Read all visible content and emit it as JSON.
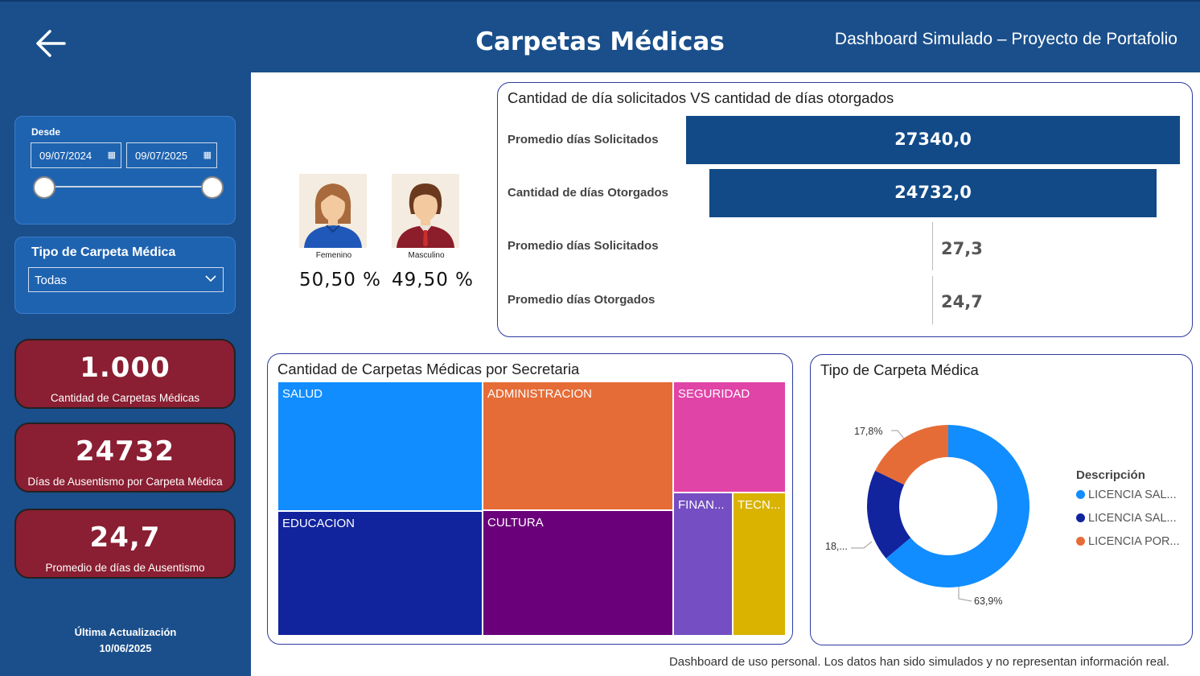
{
  "header": {
    "title": "Carpetas Médicas",
    "subtitle": "Dashboard Simulado – Proyecto de Portafolio",
    "back_icon": "arrow-left-icon"
  },
  "filters": {
    "date": {
      "label": "Desde",
      "start": "09/07/2024",
      "end": "09/07/2025",
      "calendar_icon": "calendar-icon",
      "range_fraction": [
        0,
        1
      ]
    },
    "tipo": {
      "label": "Tipo de Carpeta Médica",
      "selected": "Todas",
      "icon": "chevron-down-icon"
    }
  },
  "kpis": [
    {
      "value": "1.000",
      "label": "Cantidad de Carpetas Médicas"
    },
    {
      "value": "24732",
      "label": "Días de Ausentismo por Carpeta Médica"
    },
    {
      "value": "24,7",
      "label": "Promedio de días de Ausentismo"
    }
  ],
  "update": {
    "label": "Última Actualización",
    "date": "10/06/2025"
  },
  "gender": [
    {
      "name": "Femenino",
      "pct": "50,50 %",
      "icon": "female-avatar-icon"
    },
    {
      "name": "Masculino",
      "pct": "49,50 %",
      "icon": "male-avatar-icon"
    }
  ],
  "bars_chart": {
    "title": "Cantidad de día solicitados VS cantidad de días otorgados",
    "rows": [
      {
        "label": "Promedio días Solicitados",
        "value": 27340.0,
        "display": "27340,0"
      },
      {
        "label": "Cantidad de días Otorgados",
        "value": 24732.0,
        "display": "24732,0"
      },
      {
        "label": "Promedio días Solicitados",
        "value": 27.3,
        "display": "27,3"
      },
      {
        "label": "Promedio días Otorgados",
        "value": 24.7,
        "display": "24,7"
      }
    ]
  },
  "treemap": {
    "title": "Cantidad de Carpetas Médicas por Secretaria",
    "tiles": [
      {
        "label": "SALUD",
        "color": "#118dff"
      },
      {
        "label": "ADMINISTRACION",
        "color": "#e66c37"
      },
      {
        "label": "SEGURIDAD",
        "color": "#e044a7"
      },
      {
        "label": "EDUCACION",
        "color": "#12239e"
      },
      {
        "label": "CULTURA",
        "color": "#6b007b"
      },
      {
        "label": "FINAN...",
        "color": "#744ec2"
      },
      {
        "label": "TECN...",
        "color": "#d9b300"
      }
    ]
  },
  "donut": {
    "title": "Tipo de Carpeta Médica",
    "legend_title": "Descripción",
    "slice_labels": [
      "63,9%",
      "18,...",
      "17,8%"
    ],
    "series": [
      {
        "name": "LICENCIA SAL...",
        "value": 63.9,
        "color": "#118dff"
      },
      {
        "name": "LICENCIA SAL...",
        "value": 18.3,
        "color": "#12239e"
      },
      {
        "name": "LICENCIA POR...",
        "value": 17.8,
        "color": "#e66c37"
      }
    ]
  },
  "chart_data": [
    {
      "type": "bar",
      "title": "Cantidad de día solicitados VS cantidad de días otorgados",
      "categories": [
        "Promedio días Solicitados",
        "Cantidad de días Otorgados",
        "Promedio días Solicitados",
        "Promedio días Otorgados"
      ],
      "values": [
        27340.0,
        24732.0,
        27.3,
        24.7
      ]
    },
    {
      "type": "pie",
      "title": "Tipo de Carpeta Médica",
      "categories": [
        "LICENCIA SAL...",
        "LICENCIA SAL...",
        "LICENCIA POR..."
      ],
      "values": [
        63.9,
        18.3,
        17.8
      ]
    }
  ],
  "footnote": "Dashboard de uso personal. Los datos han sido simulados y no representan información real."
}
